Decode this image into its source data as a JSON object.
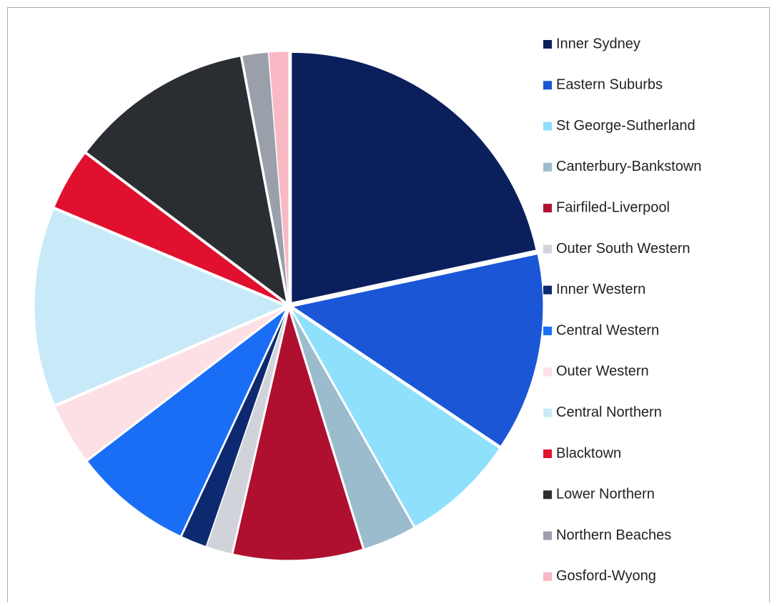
{
  "chart_data": {
    "type": "pie",
    "categories": [
      "Inner Sydney",
      "Eastern Suburbs",
      "St George-Sutherland",
      "Canterbury-Bankstown",
      "Fairfiled-Liverpool",
      "Outer South Western",
      "Inner Western",
      "Central Western",
      "Outer Western",
      "Central Northern",
      "Blacktown",
      "Lower Northern",
      "Northern Beaches",
      "Gosford-Wyong"
    ],
    "values": [
      22,
      13,
      7.5,
      3.5,
      8.5,
      1.7,
      1.7,
      7.8,
      4,
      13,
      4,
      12,
      1.7,
      1.3
    ],
    "colors": [
      "#0a1f5c",
      "#1a56d6",
      "#8ee0fc",
      "#9bbccc",
      "#b01030",
      "#d0d4da",
      "#0d2a70",
      "#1a6ef5",
      "#fde0e6",
      "#c8eaf8",
      "#e0102e",
      "#2a2e33",
      "#9aa0aa",
      "#f8b8c4"
    ],
    "legend": "right"
  }
}
